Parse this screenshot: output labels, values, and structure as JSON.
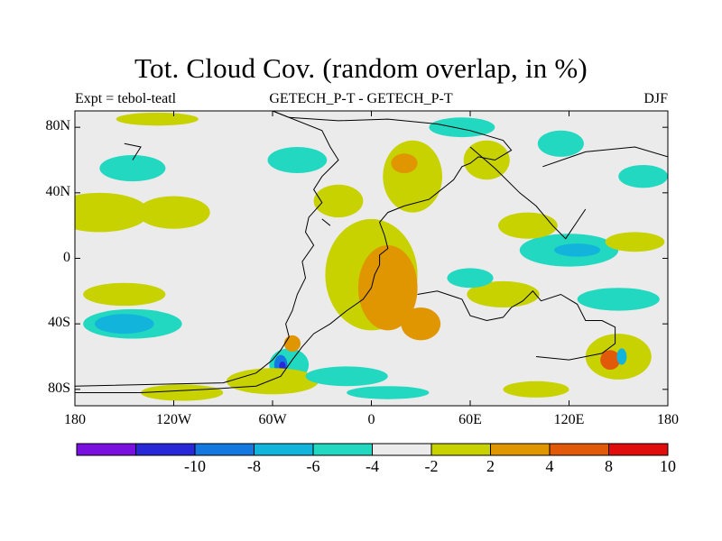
{
  "title": "Tot. Cloud Cov. (random overlap, in %)",
  "subtitle_left": "Expt = tebol-teatl",
  "subtitle_center": "GETECH_P-T - GETECH_P-T",
  "subtitle_right": "DJF",
  "map": {
    "lon_range": [
      -180,
      180
    ],
    "lat_range": [
      -90,
      90
    ],
    "lat_ticks": [
      {
        "value": 80,
        "label": "80N"
      },
      {
        "value": 40,
        "label": "40N"
      },
      {
        "value": 0,
        "label": "0"
      },
      {
        "value": -40,
        "label": "40S"
      },
      {
        "value": -80,
        "label": "80S"
      }
    ],
    "lon_ticks": [
      {
        "value": -180,
        "label": "180"
      },
      {
        "value": -120,
        "label": "120W"
      },
      {
        "value": -60,
        "label": "60W"
      },
      {
        "value": 0,
        "label": "0"
      },
      {
        "value": 60,
        "label": "60E"
      },
      {
        "value": 120,
        "label": "120E"
      },
      {
        "value": 180,
        "label": "180"
      }
    ]
  },
  "colorbar": {
    "colors": [
      "#7a10e0",
      "#2828d8",
      "#1478e0",
      "#12b4dc",
      "#22d8c0",
      "#ebebeb",
      "#c8d200",
      "#e09600",
      "#e05a0a",
      "#e00d0d"
    ],
    "labels": [
      {
        "boundary": 2,
        "text": "-10"
      },
      {
        "boundary": 3,
        "text": "-8"
      },
      {
        "boundary": 4,
        "text": "-6"
      },
      {
        "boundary": 5,
        "text": "-4"
      },
      {
        "boundary": 6,
        "text": "-2"
      },
      {
        "boundary": 7,
        "text": "2"
      },
      {
        "boundary": 8,
        "text": "4"
      },
      {
        "boundary": 9,
        "text": "8"
      },
      {
        "boundary": 10,
        "text": "10"
      }
    ]
  },
  "palette": {
    "neutral": "#ebebeb",
    "cyan": "#22d8c0",
    "blue": "#12b4dc",
    "darkblue": "#1478e0",
    "navy": "#2828d8",
    "yellow": "#c8d200",
    "orange": "#e09600",
    "redorange": "#e05a0a",
    "red": "#e00d0d",
    "coast": "#000000"
  },
  "anomaly_regions": [
    {
      "level": "yellow",
      "lon": 0,
      "lat": -10,
      "rlon": 28,
      "rlat": 34
    },
    {
      "level": "orange",
      "lon": 10,
      "lat": -18,
      "rlon": 18,
      "rlat": 26
    },
    {
      "level": "orange",
      "lon": 30,
      "lat": -40,
      "rlon": 12,
      "rlat": 10
    },
    {
      "level": "yellow",
      "lon": 25,
      "lat": 50,
      "rlon": 18,
      "rlat": 22
    },
    {
      "level": "orange",
      "lon": 20,
      "lat": 58,
      "rlon": 8,
      "rlat": 6
    },
    {
      "level": "orange",
      "lon": 72,
      "lat": 60,
      "rlon": 8,
      "rlat": 7
    },
    {
      "level": "yellow",
      "lon": 70,
      "lat": 60,
      "rlon": 14,
      "rlat": 12
    },
    {
      "level": "cyan",
      "lon": 55,
      "lat": 80,
      "rlon": 20,
      "rlat": 6
    },
    {
      "level": "cyan",
      "lon": 115,
      "lat": 70,
      "rlon": 14,
      "rlat": 8
    },
    {
      "level": "cyan",
      "lon": 165,
      "lat": 50,
      "rlon": 15,
      "rlat": 7
    },
    {
      "level": "yellow",
      "lon": -130,
      "lat": 85,
      "rlon": 25,
      "rlat": 4
    },
    {
      "level": "yellow",
      "lon": -165,
      "lat": 28,
      "rlon": 30,
      "rlat": 12
    },
    {
      "level": "yellow",
      "lon": -120,
      "lat": 28,
      "rlon": 22,
      "rlat": 10
    },
    {
      "level": "cyan",
      "lon": -145,
      "lat": 55,
      "rlon": 20,
      "rlat": 8
    },
    {
      "level": "cyan",
      "lon": -45,
      "lat": 60,
      "rlon": 18,
      "rlat": 8
    },
    {
      "level": "yellow",
      "lon": -20,
      "lat": 35,
      "rlon": 15,
      "rlat": 10
    },
    {
      "level": "cyan",
      "lon": 120,
      "lat": 5,
      "rlon": 30,
      "rlat": 10
    },
    {
      "level": "blue",
      "lon": 125,
      "lat": 5,
      "rlon": 14,
      "rlat": 4
    },
    {
      "level": "yellow",
      "lon": 160,
      "lat": 10,
      "rlon": 18,
      "rlat": 6
    },
    {
      "level": "yellow",
      "lon": 95,
      "lat": 20,
      "rlon": 18,
      "rlat": 8
    },
    {
      "level": "yellow",
      "lon": 80,
      "lat": -22,
      "rlon": 22,
      "rlat": 8
    },
    {
      "level": "yellow",
      "lon": -150,
      "lat": -22,
      "rlon": 25,
      "rlat": 7
    },
    {
      "level": "cyan",
      "lon": -145,
      "lat": -40,
      "rlon": 30,
      "rlat": 9
    },
    {
      "level": "blue",
      "lon": -150,
      "lat": -40,
      "rlon": 18,
      "rlat": 6
    },
    {
      "level": "cyan",
      "lon": -50,
      "lat": -65,
      "rlon": 12,
      "rlat": 10
    },
    {
      "level": "darkblue",
      "lon": -55,
      "lat": -65,
      "rlon": 4,
      "rlat": 6
    },
    {
      "level": "navy",
      "lon": -54,
      "lat": -66,
      "rlon": 2,
      "rlat": 3
    },
    {
      "level": "orange",
      "lon": -48,
      "lat": -52,
      "rlon": 5,
      "rlat": 5
    },
    {
      "level": "yellow",
      "lon": -60,
      "lat": -75,
      "rlon": 28,
      "rlat": 8
    },
    {
      "level": "cyan",
      "lon": -15,
      "lat": -72,
      "rlon": 25,
      "rlat": 6
    },
    {
      "level": "yellow",
      "lon": 150,
      "lat": -60,
      "rlon": 20,
      "rlat": 14
    },
    {
      "level": "redorange",
      "lon": 145,
      "lat": -62,
      "rlon": 6,
      "rlat": 6
    },
    {
      "level": "blue",
      "lon": 152,
      "lat": -60,
      "rlon": 3,
      "rlat": 5
    },
    {
      "level": "cyan",
      "lon": 150,
      "lat": -25,
      "rlon": 25,
      "rlat": 7
    },
    {
      "level": "cyan",
      "lon": 60,
      "lat": -12,
      "rlon": 14,
      "rlat": 6
    },
    {
      "level": "yellow",
      "lon": -115,
      "lat": -82,
      "rlon": 25,
      "rlat": 5
    },
    {
      "level": "cyan",
      "lon": 10,
      "lat": -82,
      "rlon": 25,
      "rlat": 4
    },
    {
      "level": "yellow",
      "lon": 100,
      "lat": -80,
      "rlon": 20,
      "rlat": 5
    }
  ],
  "coastlines": [
    [
      [
        -60,
        90
      ],
      [
        -50,
        86
      ],
      [
        -20,
        84
      ],
      [
        10,
        85
      ],
      [
        40,
        82
      ],
      [
        60,
        78
      ],
      [
        80,
        72
      ],
      [
        85,
        66
      ],
      [
        75,
        60
      ],
      [
        65,
        62
      ],
      [
        60,
        58
      ],
      [
        55,
        56
      ],
      [
        50,
        48
      ],
      [
        45,
        44
      ],
      [
        40,
        40
      ],
      [
        35,
        36
      ],
      [
        20,
        32
      ],
      [
        10,
        28
      ],
      [
        5,
        22
      ],
      [
        8,
        14
      ],
      [
        10,
        6
      ],
      [
        5,
        2
      ],
      [
        5,
        -4
      ],
      [
        2,
        -10
      ],
      [
        0,
        -18
      ],
      [
        -5,
        -25
      ],
      [
        -15,
        -32
      ],
      [
        -25,
        -40
      ],
      [
        -35,
        -46
      ],
      [
        -42,
        -54
      ],
      [
        -48,
        -62
      ],
      [
        -55,
        -72
      ],
      [
        -70,
        -78
      ],
      [
        -100,
        -80
      ],
      [
        -140,
        -82
      ],
      [
        -180,
        -82
      ]
    ],
    [
      [
        -60,
        90
      ],
      [
        -30,
        78
      ],
      [
        -25,
        68
      ],
      [
        -20,
        60
      ],
      [
        -30,
        50
      ],
      [
        -35,
        42
      ],
      [
        -30,
        34
      ],
      [
        -38,
        25
      ],
      [
        -40,
        16
      ],
      [
        -35,
        8
      ],
      [
        -42,
        -2
      ],
      [
        -40,
        -12
      ],
      [
        -45,
        -22
      ],
      [
        -48,
        -32
      ],
      [
        -52,
        -40
      ],
      [
        -50,
        -48
      ],
      [
        -55,
        -56
      ],
      [
        -60,
        -62
      ],
      [
        -70,
        -70
      ],
      [
        -90,
        -76
      ],
      [
        -180,
        -78
      ]
    ],
    [
      [
        28,
        -22
      ],
      [
        40,
        -20
      ],
      [
        55,
        -25
      ],
      [
        60,
        -35
      ],
      [
        70,
        -38
      ],
      [
        80,
        -36
      ],
      [
        85,
        -30
      ],
      [
        92,
        -26
      ],
      [
        98,
        -20
      ],
      [
        103,
        -26
      ],
      [
        115,
        -22
      ],
      [
        125,
        -28
      ],
      [
        130,
        -38
      ],
      [
        140,
        -38
      ],
      [
        148,
        -42
      ],
      [
        148,
        -52
      ],
      [
        140,
        -58
      ],
      [
        120,
        -62
      ],
      [
        100,
        -60
      ]
    ],
    [
      [
        60,
        68
      ],
      [
        75,
        55
      ],
      [
        90,
        40
      ],
      [
        100,
        32
      ],
      [
        110,
        20
      ],
      [
        118,
        12
      ],
      [
        122,
        18
      ],
      [
        130,
        30
      ]
    ],
    [
      [
        -150,
        70
      ],
      [
        -140,
        68
      ],
      [
        -145,
        60
      ]
    ],
    [
      [
        -30,
        24
      ],
      [
        -25,
        20
      ]
    ],
    [
      [
        104,
        56
      ],
      [
        130,
        65
      ],
      [
        160,
        68
      ],
      [
        180,
        62
      ]
    ]
  ]
}
